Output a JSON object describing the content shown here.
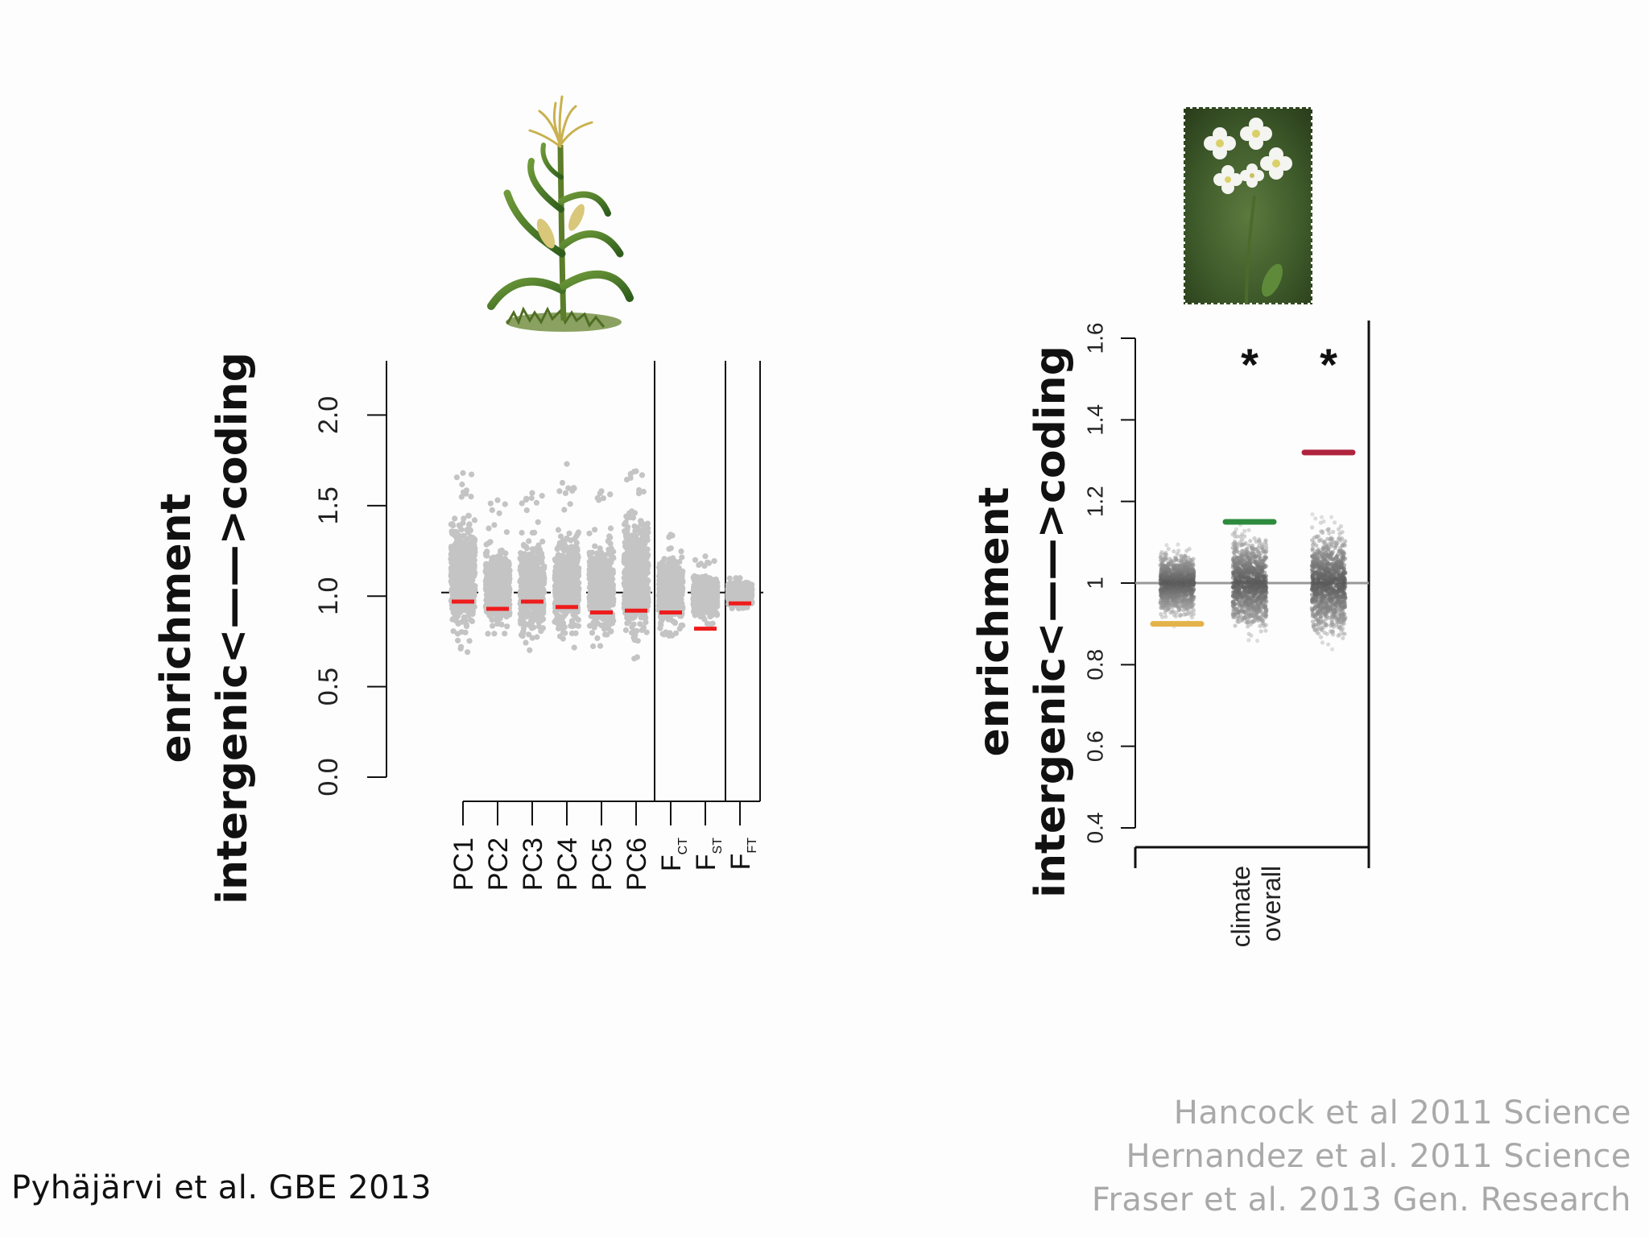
{
  "citations": {
    "left": "Pyhäjärvi et al. GBE 2013",
    "right": [
      "Hancock et al 2011 Science",
      "Hernandez et al. 2011 Science",
      "Fraser et al. 2013 Gen. Research"
    ]
  },
  "images": {
    "left": "maize-plant",
    "right": "arabidopsis-flower-photo"
  },
  "colors": {
    "points": "#c4c4c4",
    "observed": "#ee1c1c",
    "yellow": "#e4b24a",
    "green": "#2e8b3e",
    "crimson": "#b0243e"
  },
  "chart_data": [
    {
      "type": "scatter",
      "title": "",
      "ylabel": [
        "enrichment",
        "intergenic<——>coding"
      ],
      "xlabel": "",
      "ylim": [
        0,
        2.3
      ],
      "yticks": [
        "0.0",
        "0.5",
        "1.0",
        "1.5",
        "2.0"
      ],
      "reference_line": 1.02,
      "reference_style": "dashed",
      "categories": [
        {
          "label": "PC1",
          "sub": "",
          "observed": 0.97,
          "min": 0.69,
          "max": 1.68,
          "core_low": 0.72,
          "core_high": 1.5
        },
        {
          "label": "PC2",
          "sub": "",
          "observed": 0.93,
          "min": 0.78,
          "max": 1.53,
          "core_low": 0.8,
          "core_high": 1.3
        },
        {
          "label": "PC3",
          "sub": "",
          "observed": 0.97,
          "min": 0.7,
          "max": 1.57,
          "core_low": 0.73,
          "core_high": 1.35
        },
        {
          "label": "PC4",
          "sub": "",
          "observed": 0.94,
          "min": 0.67,
          "max": 1.73,
          "core_low": 0.72,
          "core_high": 1.42
        },
        {
          "label": "PC5",
          "sub": "",
          "observed": 0.91,
          "min": 0.72,
          "max": 1.58,
          "core_low": 0.74,
          "core_high": 1.35
        },
        {
          "label": "PC6",
          "sub": "",
          "observed": 0.92,
          "min": 0.65,
          "max": 1.69,
          "core_low": 0.7,
          "core_high": 1.55
        },
        {
          "label": "F",
          "sub": "CT",
          "observed": 0.91,
          "min": 0.78,
          "max": 1.34,
          "core_low": 0.8,
          "core_high": 1.26
        },
        {
          "label": "F",
          "sub": "ST",
          "observed": 0.82,
          "min": 0.84,
          "max": 1.22,
          "core_low": 0.85,
          "core_high": 1.15
        },
        {
          "label": "F",
          "sub": "FT",
          "observed": 0.96,
          "min": 0.93,
          "max": 1.1,
          "core_low": 0.94,
          "core_high": 1.09
        }
      ],
      "separators_after": [
        6,
        8,
        9
      ]
    },
    {
      "type": "scatter",
      "title": "",
      "ylabel": [
        "enrichment",
        "intergenic<——>coding"
      ],
      "ylim": [
        0.4,
        1.6
      ],
      "yticks": [
        "0.4",
        "0.6",
        "0.8",
        "1",
        "1.2",
        "1.4",
        "1.6"
      ],
      "xtick_label": [
        "climate",
        "overall"
      ],
      "reference_line": 1.0,
      "reference_style": "solid",
      "series": [
        {
          "observed": 0.9,
          "color": "yellow",
          "min": 0.86,
          "max": 1.13,
          "significant": false
        },
        {
          "observed": 1.15,
          "color": "green",
          "min": 0.77,
          "max": 1.17,
          "significant": true
        },
        {
          "observed": 1.32,
          "color": "crimson",
          "min": 0.78,
          "max": 1.23,
          "significant": true
        }
      ],
      "significance_marker": "*"
    }
  ]
}
